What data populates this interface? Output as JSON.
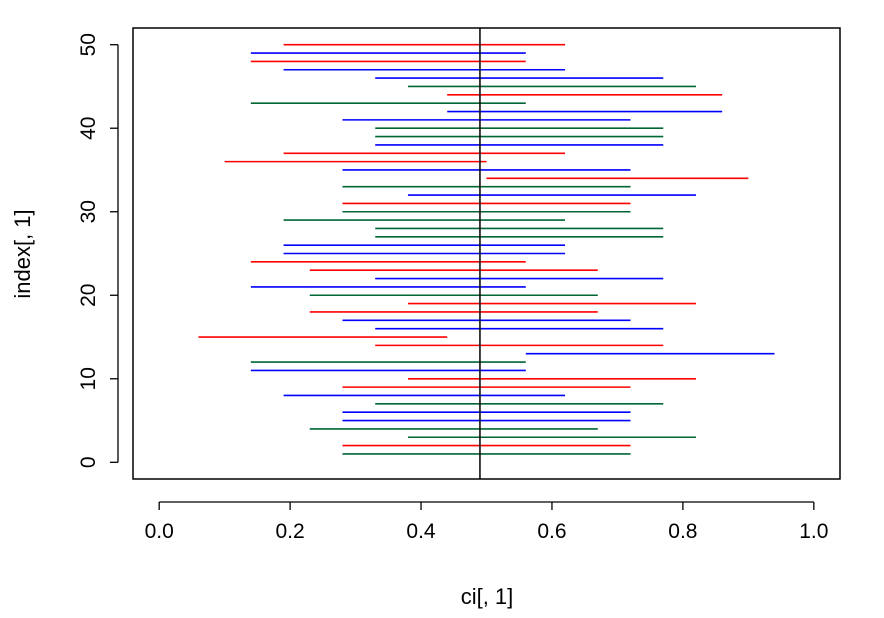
{
  "chart_data": {
    "type": "interval",
    "xlabel": "ci[, 1]",
    "ylabel": "index[, 1]",
    "xlim": [
      -0.04,
      1.04
    ],
    "ylim": [
      -2,
      52
    ],
    "x_ticks": [
      "0.0",
      "0.2",
      "0.4",
      "0.6",
      "0.8",
      "1.0"
    ],
    "x_tick_values": [
      0,
      0.2,
      0.4,
      0.6,
      0.8,
      1.0
    ],
    "y_ticks": [
      "0",
      "10",
      "20",
      "30",
      "40",
      "50"
    ],
    "y_tick_values": [
      0,
      10,
      20,
      30,
      40,
      50
    ],
    "reference_line_x": 0.49,
    "grid": false,
    "colors": {
      "red": "#ff0000",
      "blue": "#0000ff",
      "green": "#006633"
    },
    "intervals": [
      {
        "index": 1,
        "lower": 0.28,
        "upper": 0.72,
        "color": "green"
      },
      {
        "index": 2,
        "lower": 0.28,
        "upper": 0.72,
        "color": "red"
      },
      {
        "index": 3,
        "lower": 0.38,
        "upper": 0.82,
        "color": "green"
      },
      {
        "index": 4,
        "lower": 0.23,
        "upper": 0.67,
        "color": "green"
      },
      {
        "index": 5,
        "lower": 0.28,
        "upper": 0.72,
        "color": "blue"
      },
      {
        "index": 6,
        "lower": 0.28,
        "upper": 0.72,
        "color": "blue"
      },
      {
        "index": 7,
        "lower": 0.33,
        "upper": 0.77,
        "color": "green"
      },
      {
        "index": 8,
        "lower": 0.19,
        "upper": 0.62,
        "color": "blue"
      },
      {
        "index": 9,
        "lower": 0.28,
        "upper": 0.72,
        "color": "red"
      },
      {
        "index": 10,
        "lower": 0.38,
        "upper": 0.82,
        "color": "red"
      },
      {
        "index": 11,
        "lower": 0.14,
        "upper": 0.56,
        "color": "blue"
      },
      {
        "index": 12,
        "lower": 0.14,
        "upper": 0.56,
        "color": "green"
      },
      {
        "index": 13,
        "lower": 0.56,
        "upper": 0.94,
        "color": "blue"
      },
      {
        "index": 14,
        "lower": 0.33,
        "upper": 0.77,
        "color": "red"
      },
      {
        "index": 15,
        "lower": 0.06,
        "upper": 0.44,
        "color": "red"
      },
      {
        "index": 16,
        "lower": 0.33,
        "upper": 0.77,
        "color": "blue"
      },
      {
        "index": 17,
        "lower": 0.28,
        "upper": 0.72,
        "color": "blue"
      },
      {
        "index": 18,
        "lower": 0.23,
        "upper": 0.67,
        "color": "red"
      },
      {
        "index": 19,
        "lower": 0.38,
        "upper": 0.82,
        "color": "red"
      },
      {
        "index": 20,
        "lower": 0.23,
        "upper": 0.67,
        "color": "green"
      },
      {
        "index": 21,
        "lower": 0.14,
        "upper": 0.56,
        "color": "blue"
      },
      {
        "index": 22,
        "lower": 0.33,
        "upper": 0.77,
        "color": "blue"
      },
      {
        "index": 23,
        "lower": 0.23,
        "upper": 0.67,
        "color": "red"
      },
      {
        "index": 24,
        "lower": 0.14,
        "upper": 0.56,
        "color": "red"
      },
      {
        "index": 25,
        "lower": 0.19,
        "upper": 0.62,
        "color": "blue"
      },
      {
        "index": 26,
        "lower": 0.19,
        "upper": 0.62,
        "color": "blue"
      },
      {
        "index": 27,
        "lower": 0.33,
        "upper": 0.77,
        "color": "green"
      },
      {
        "index": 28,
        "lower": 0.33,
        "upper": 0.77,
        "color": "green"
      },
      {
        "index": 29,
        "lower": 0.19,
        "upper": 0.62,
        "color": "green"
      },
      {
        "index": 30,
        "lower": 0.28,
        "upper": 0.72,
        "color": "green"
      },
      {
        "index": 31,
        "lower": 0.28,
        "upper": 0.72,
        "color": "red"
      },
      {
        "index": 32,
        "lower": 0.38,
        "upper": 0.82,
        "color": "blue"
      },
      {
        "index": 33,
        "lower": 0.28,
        "upper": 0.72,
        "color": "green"
      },
      {
        "index": 34,
        "lower": 0.5,
        "upper": 0.9,
        "color": "red"
      },
      {
        "index": 35,
        "lower": 0.28,
        "upper": 0.72,
        "color": "blue"
      },
      {
        "index": 36,
        "lower": 0.1,
        "upper": 0.5,
        "color": "red"
      },
      {
        "index": 37,
        "lower": 0.19,
        "upper": 0.62,
        "color": "red"
      },
      {
        "index": 38,
        "lower": 0.33,
        "upper": 0.77,
        "color": "blue"
      },
      {
        "index": 39,
        "lower": 0.33,
        "upper": 0.77,
        "color": "green"
      },
      {
        "index": 40,
        "lower": 0.33,
        "upper": 0.77,
        "color": "green"
      },
      {
        "index": 41,
        "lower": 0.28,
        "upper": 0.72,
        "color": "blue"
      },
      {
        "index": 42,
        "lower": 0.44,
        "upper": 0.86,
        "color": "blue"
      },
      {
        "index": 43,
        "lower": 0.14,
        "upper": 0.56,
        "color": "green"
      },
      {
        "index": 44,
        "lower": 0.44,
        "upper": 0.86,
        "color": "red"
      },
      {
        "index": 45,
        "lower": 0.38,
        "upper": 0.82,
        "color": "green"
      },
      {
        "index": 46,
        "lower": 0.33,
        "upper": 0.77,
        "color": "blue"
      },
      {
        "index": 47,
        "lower": 0.19,
        "upper": 0.62,
        "color": "blue"
      },
      {
        "index": 48,
        "lower": 0.14,
        "upper": 0.56,
        "color": "red"
      },
      {
        "index": 49,
        "lower": 0.14,
        "upper": 0.56,
        "color": "blue"
      },
      {
        "index": 50,
        "lower": 0.19,
        "upper": 0.62,
        "color": "red"
      }
    ]
  }
}
